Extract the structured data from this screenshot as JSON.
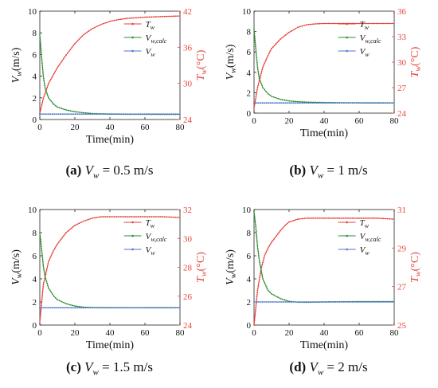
{
  "chart_data": [
    {
      "type": "line",
      "xlabel": "Time(min)",
      "ylabel": "V_w(m/s)",
      "ylabel_right": "T_w(°C)",
      "xlim": [
        0,
        80
      ],
      "ylim": [
        0,
        10
      ],
      "ylim_right": [
        24,
        42
      ],
      "xticks": [
        "0",
        "20",
        "40",
        "60",
        "80"
      ],
      "yticks": [
        "0",
        "2",
        "4",
        "6",
        "8",
        "10"
      ],
      "yticks_right": [
        "24",
        "30",
        "36",
        "42"
      ],
      "legend_position": "top-right",
      "legend": [
        "T_w",
        "V_w,calc",
        "V_w"
      ],
      "caption": {
        "label": "(a)",
        "text": "V_w = 0.5 m/s"
      },
      "series": [
        {
          "name": "T_w",
          "axis": "right",
          "color": "#e8423a",
          "x": [
            0,
            2,
            5,
            10,
            15,
            20,
            25,
            30,
            35,
            40,
            45,
            50,
            60,
            70,
            80
          ],
          "y": [
            25.0,
            27.5,
            30.0,
            32.6,
            34.7,
            36.6,
            38.1,
            39.1,
            39.8,
            40.3,
            40.6,
            40.8,
            41.0,
            41.1,
            41.2
          ]
        },
        {
          "name": "V_w,calc",
          "axis": "left",
          "color": "#2e8b2e",
          "x": [
            0,
            1,
            2,
            3,
            5,
            8,
            10,
            15,
            20,
            25,
            30,
            40,
            50,
            60,
            70,
            80
          ],
          "y": [
            7.8,
            5.8,
            4.0,
            2.9,
            2.0,
            1.4,
            1.15,
            0.88,
            0.72,
            0.62,
            0.55,
            0.5,
            0.48,
            0.48,
            0.47,
            0.47
          ]
        },
        {
          "name": "V_w",
          "axis": "left",
          "color": "#4a78c8",
          "x": [
            0,
            80
          ],
          "y": [
            0.5,
            0.5
          ]
        }
      ]
    },
    {
      "type": "line",
      "xlabel": "Time(min)",
      "ylabel": "V_w(m/s)",
      "ylabel_right": "T_w(°C)",
      "xlim": [
        0,
        80
      ],
      "ylim": [
        0,
        10
      ],
      "ylim_right": [
        24,
        36
      ],
      "xticks": [
        "0",
        "20",
        "40",
        "60",
        "80"
      ],
      "yticks": [
        "0",
        "2",
        "4",
        "6",
        "8",
        "10"
      ],
      "yticks_right": [
        "24",
        "27",
        "30",
        "33",
        "36"
      ],
      "legend_position": "top-right",
      "legend": [
        "T_w",
        "V_w,calc",
        "V_w"
      ],
      "caption": {
        "label": "(b)",
        "text": "V_w = 1 m/s"
      },
      "series": [
        {
          "name": "T_w",
          "axis": "right",
          "color": "#e8423a",
          "x": [
            0,
            2,
            5,
            8,
            10,
            15,
            20,
            25,
            30,
            35,
            40,
            50,
            60,
            70,
            80
          ],
          "y": [
            24.6,
            27.0,
            29.4,
            30.8,
            31.6,
            32.7,
            33.5,
            34.1,
            34.4,
            34.5,
            34.55,
            34.55,
            34.55,
            34.55,
            34.55
          ]
        },
        {
          "name": "V_w,calc",
          "axis": "left",
          "color": "#2e8b2e",
          "x": [
            0,
            1,
            2,
            3,
            5,
            8,
            10,
            15,
            20,
            25,
            30,
            40,
            50,
            60,
            70,
            80
          ],
          "y": [
            8.2,
            6.3,
            4.5,
            3.4,
            2.5,
            1.9,
            1.65,
            1.35,
            1.2,
            1.12,
            1.08,
            1.04,
            1.02,
            1.01,
            1.0,
            1.0
          ]
        },
        {
          "name": "V_w",
          "axis": "left",
          "color": "#4a78c8",
          "x": [
            0,
            80
          ],
          "y": [
            1.0,
            1.0
          ]
        }
      ]
    },
    {
      "type": "line",
      "xlabel": "Time(min)",
      "ylabel": "V_w(m/s)",
      "ylabel_right": "T_w(°C)",
      "xlim": [
        0,
        80
      ],
      "ylim": [
        0,
        10
      ],
      "ylim_right": [
        24,
        32
      ],
      "xticks": [
        "0",
        "20",
        "40",
        "60",
        "80"
      ],
      "yticks": [
        "0",
        "2",
        "4",
        "6",
        "8",
        "10"
      ],
      "yticks_right": [
        "24",
        "26",
        "28",
        "30",
        "32"
      ],
      "legend_position": "top-right",
      "legend": [
        "T_w",
        "V_w,calc",
        "V_w"
      ],
      "caption": {
        "label": "(c)",
        "text": "V_w = 1.5 m/s"
      },
      "series": [
        {
          "name": "T_w",
          "axis": "right",
          "color": "#e8423a",
          "x": [
            0,
            2,
            5,
            8,
            10,
            15,
            20,
            25,
            30,
            35,
            40,
            50,
            60,
            70,
            80
          ],
          "y": [
            24.2,
            26.8,
            28.4,
            29.2,
            29.6,
            30.4,
            30.9,
            31.2,
            31.4,
            31.5,
            31.5,
            31.5,
            31.5,
            31.5,
            31.45
          ]
        },
        {
          "name": "V_w,calc",
          "axis": "left",
          "color": "#2e8b2e",
          "x": [
            0,
            1,
            2,
            3,
            5,
            8,
            10,
            15,
            20,
            25,
            30,
            40,
            50,
            60,
            70,
            80
          ],
          "y": [
            8.0,
            6.6,
            5.1,
            4.2,
            3.2,
            2.5,
            2.2,
            1.85,
            1.65,
            1.55,
            1.52,
            1.5,
            1.5,
            1.5,
            1.5,
            1.5
          ]
        },
        {
          "name": "V_w",
          "axis": "left",
          "color": "#4a78c8",
          "x": [
            0,
            80
          ],
          "y": [
            1.5,
            1.5
          ]
        }
      ]
    },
    {
      "type": "line",
      "xlabel": "Time(min)",
      "ylabel": "V_w(m/s)",
      "ylabel_right": "T_w(°C)",
      "xlim": [
        0,
        80
      ],
      "ylim": [
        0,
        10
      ],
      "ylim_right": [
        25,
        31
      ],
      "xticks": [
        "0",
        "20",
        "40",
        "60",
        "80"
      ],
      "yticks": [
        "0",
        "2",
        "4",
        "6",
        "8",
        "10"
      ],
      "yticks_right": [
        "25",
        "27",
        "29",
        "31"
      ],
      "legend_position": "top-right",
      "legend": [
        "T_w",
        "V_w,calc",
        "V_w"
      ],
      "caption": {
        "label": "(d)",
        "text": "V_w = 2 m/s"
      },
      "series": [
        {
          "name": "T_w",
          "axis": "right",
          "color": "#e8423a",
          "x": [
            0,
            2,
            4,
            6,
            8,
            10,
            15,
            18,
            20,
            25,
            30,
            40,
            50,
            60,
            70,
            80
          ],
          "y": [
            25.0,
            26.8,
            27.9,
            28.6,
            29.0,
            29.3,
            29.9,
            30.2,
            30.35,
            30.5,
            30.55,
            30.55,
            30.55,
            30.55,
            30.55,
            30.5
          ]
        },
        {
          "name": "V_w,calc",
          "axis": "left",
          "color": "#2e8b2e",
          "x": [
            0,
            1,
            2,
            3,
            5,
            8,
            10,
            15,
            20,
            25,
            30,
            40,
            50,
            60,
            70,
            80
          ],
          "y": [
            9.8,
            8.5,
            6.8,
            5.6,
            4.0,
            3.0,
            2.7,
            2.3,
            2.05,
            1.98,
            1.97,
            2.0,
            2.02,
            2.03,
            2.03,
            2.03
          ]
        },
        {
          "name": "V_w",
          "axis": "left",
          "color": "#4a78c8",
          "x": [
            0,
            80
          ],
          "y": [
            2.0,
            2.0
          ]
        }
      ]
    }
  ]
}
